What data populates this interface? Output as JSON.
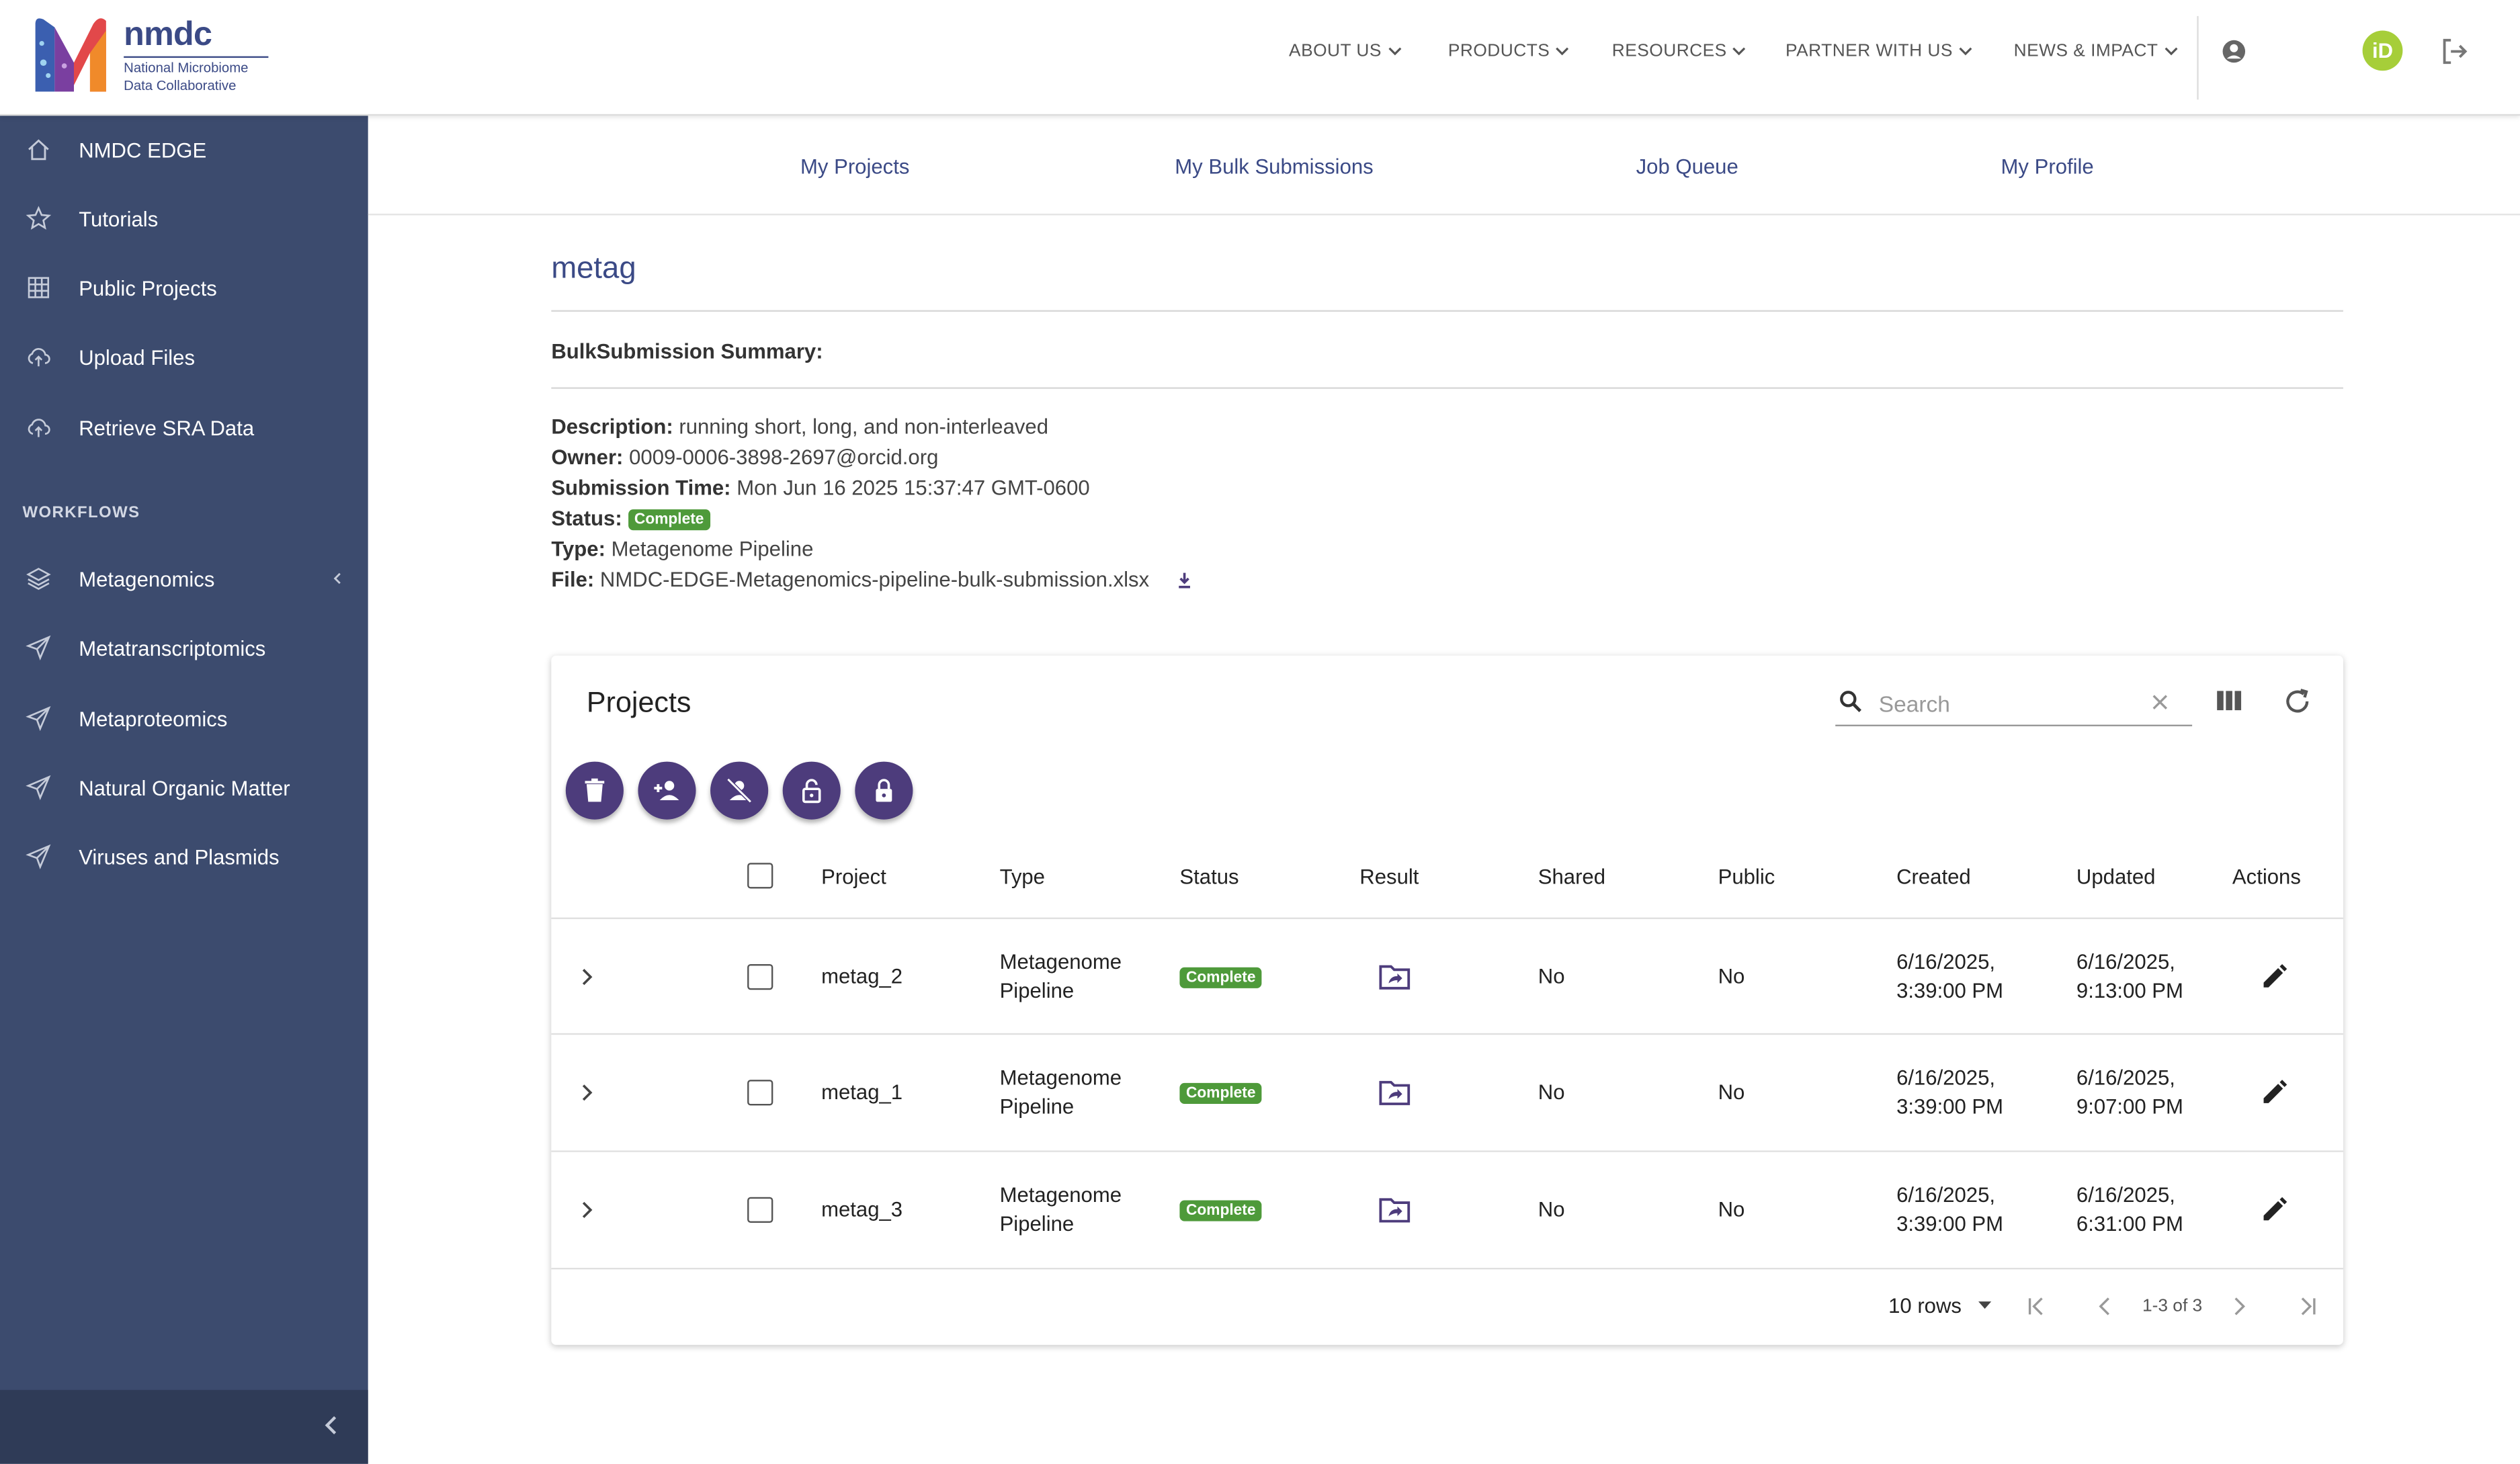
{
  "logo": {
    "name": "nmdc",
    "subtitle_line1": "National Microbiome",
    "subtitle_line2": "Data Collaborative"
  },
  "topnav": [
    {
      "label": "ABOUT US"
    },
    {
      "label": "PRODUCTS"
    },
    {
      "label": "RESOURCES"
    },
    {
      "label": "PARTNER WITH US"
    },
    {
      "label": "NEWS & IMPACT"
    }
  ],
  "user": {
    "orcid_badge": "iD"
  },
  "sidebar": {
    "items": [
      {
        "label": "NMDC EDGE",
        "icon": "home-icon"
      },
      {
        "label": "Tutorials",
        "icon": "star-icon"
      },
      {
        "label": "Public Projects",
        "icon": "grid-icon"
      },
      {
        "label": "Upload Files",
        "icon": "cloud-upload-icon"
      },
      {
        "label": "Retrieve SRA Data",
        "icon": "cloud-download-icon"
      }
    ],
    "section_title": "WORKFLOWS",
    "workflows": [
      {
        "label": "Metagenomics",
        "icon": "layers-icon"
      },
      {
        "label": "Metatranscriptomics",
        "icon": "send-icon"
      },
      {
        "label": "Metaproteomics",
        "icon": "send-icon"
      },
      {
        "label": "Natural Organic Matter",
        "icon": "send-icon"
      },
      {
        "label": "Viruses and Plasmids",
        "icon": "send-icon"
      }
    ]
  },
  "subnav": {
    "my_projects": "My Projects",
    "my_bulk": "My Bulk Submissions",
    "job_queue": "Job Queue",
    "my_profile": "My Profile"
  },
  "page": {
    "title": "metag",
    "summary_label": "BulkSubmission Summary:",
    "description_label": "Description:",
    "description": "running short, long, and non-interleaved",
    "owner_label": "Owner:",
    "owner": "0009-0006-3898-2697@orcid.org",
    "submission_time_label": "Submission Time:",
    "submission_time": "Mon Jun 16 2025 15:37:47 GMT-0600",
    "status_label": "Status:",
    "status": "Complete",
    "type_label": "Type:",
    "type": "Metagenome Pipeline",
    "file_label": "File:",
    "file": "NMDC-EDGE-Metagenomics-pipeline-bulk-submission.xlsx"
  },
  "projects_table": {
    "title": "Projects",
    "search_placeholder": "Search",
    "columns": {
      "project": "Project",
      "type": "Type",
      "status": "Status",
      "result": "Result",
      "shared": "Shared",
      "public": "Public",
      "created": "Created",
      "updated": "Updated",
      "actions": "Actions"
    },
    "rows": [
      {
        "project": "metag_2",
        "type_l1": "Metagenome",
        "type_l2": "Pipeline",
        "status": "Complete",
        "shared": "No",
        "public": "No",
        "created_l1": "6/16/2025,",
        "created_l2": "3:39:00 PM",
        "updated_l1": "6/16/2025,",
        "updated_l2": "9:13:00 PM"
      },
      {
        "project": "metag_1",
        "type_l1": "Metagenome",
        "type_l2": "Pipeline",
        "status": "Complete",
        "shared": "No",
        "public": "No",
        "created_l1": "6/16/2025,",
        "created_l2": "3:39:00 PM",
        "updated_l1": "6/16/2025,",
        "updated_l2": "9:07:00 PM"
      },
      {
        "project": "metag_3",
        "type_l1": "Metagenome",
        "type_l2": "Pipeline",
        "status": "Complete",
        "shared": "No",
        "public": "No",
        "created_l1": "6/16/2025,",
        "created_l2": "3:39:00 PM",
        "updated_l1": "6/16/2025,",
        "updated_l2": "6:31:00 PM"
      }
    ],
    "pagination": {
      "rows_per_page": "10 rows",
      "range": "1-3 of 3"
    }
  },
  "colors": {
    "sidebar": "#3c4b6e",
    "accent": "#3b4a86",
    "fab": "#4d3c7c",
    "complete": "#4e9a3a"
  }
}
